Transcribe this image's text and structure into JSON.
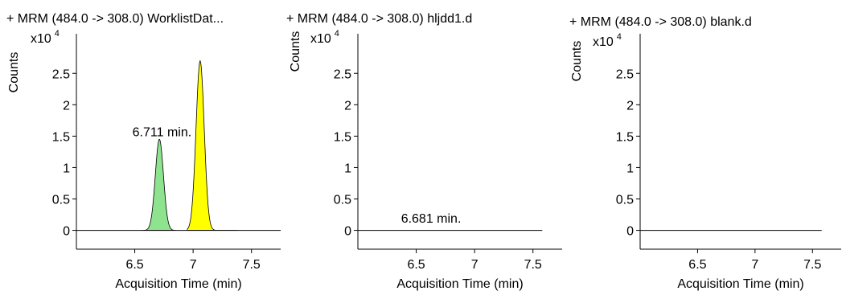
{
  "chart_data": [
    {
      "type": "line",
      "title": "+ MRM (484.0 -> 308.0) WorklistDat...",
      "xlabel": "Acquisition Time (min)",
      "ylabel": "Counts",
      "y_multiplier_base": "x10",
      "y_multiplier_exp": "4",
      "xlim": [
        6.0,
        7.75
      ],
      "ylim": [
        -0.3,
        2.9
      ],
      "x_ticks": [
        6.5,
        7,
        7.5
      ],
      "x_tick_labels": [
        "6.5",
        "7",
        "7.5"
      ],
      "y_ticks": [
        0,
        0.5,
        1,
        1.5,
        2,
        2.5
      ],
      "y_tick_labels": [
        "0",
        "0.5",
        "1",
        "1.5",
        "2",
        "2.5"
      ],
      "baseline_range": [
        6.0,
        7.75
      ],
      "peaks": [
        {
          "center": 6.711,
          "height": 1.45,
          "sigma": 0.035,
          "fill": "#8ee38e",
          "range": [
            6.57,
            6.85
          ]
        },
        {
          "center": 7.06,
          "height": 2.7,
          "sigma": 0.035,
          "fill": "#ffff00",
          "range": [
            6.95,
            7.37
          ]
        }
      ],
      "annotations": [
        {
          "text": "6.711 min.",
          "x": 6.48,
          "y": 1.5
        }
      ]
    },
    {
      "type": "line",
      "title": "+ MRM (484.0 -> 308.0) hljdd1.d",
      "xlabel": "Acquisition Time (min)",
      "ylabel": "Counts",
      "y_multiplier_base": "x10",
      "y_multiplier_exp": "4",
      "xlim": [
        6.0,
        7.75
      ],
      "ylim": [
        -0.3,
        2.9
      ],
      "x_ticks": [
        6.5,
        7,
        7.5
      ],
      "x_tick_labels": [
        "6.5",
        "7",
        "7.5"
      ],
      "y_ticks": [
        0,
        0.5,
        1,
        1.5,
        2,
        2.5
      ],
      "y_tick_labels": [
        "0",
        "0.5",
        "1",
        "1.5",
        "2",
        "2.5"
      ],
      "baseline_range": [
        6.0,
        7.58
      ],
      "peaks": [],
      "annotations": [
        {
          "text": "6.681 min.",
          "x": 6.37,
          "y": 0.12
        }
      ]
    },
    {
      "type": "line",
      "title": "+ MRM (484.0 -> 308.0) blank.d",
      "xlabel": "Acquisition Time (min)",
      "ylabel": "Counts",
      "y_multiplier_base": "x10",
      "y_multiplier_exp": "4",
      "xlim": [
        6.0,
        7.75
      ],
      "ylim": [
        -0.3,
        2.9
      ],
      "x_ticks": [
        6.5,
        7,
        7.5
      ],
      "x_tick_labels": [
        "6.5",
        "7",
        "7.5"
      ],
      "y_ticks": [
        0,
        0.5,
        1,
        1.5,
        2,
        2.5
      ],
      "y_tick_labels": [
        "0",
        "0.5",
        "1",
        "1.5",
        "2",
        "2.5"
      ],
      "baseline_range": [
        6.0,
        7.58
      ],
      "peaks": [],
      "annotations": []
    }
  ]
}
